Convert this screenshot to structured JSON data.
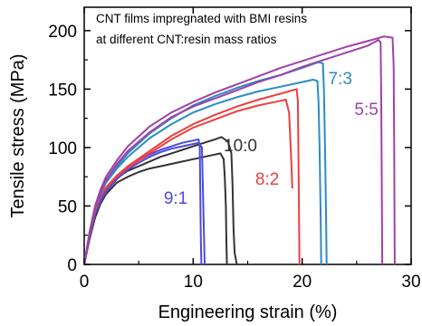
{
  "chart_data": {
    "type": "line",
    "title": "",
    "xlabel": "Engineering strain (%)",
    "ylabel": "Tensile stress (MPa)",
    "xlim": [
      0,
      30
    ],
    "ylim": [
      0,
      220
    ],
    "x_ticks": [
      "0",
      "10",
      "20",
      "30"
    ],
    "y_ticks": [
      "0",
      "50",
      "100",
      "150",
      "200"
    ],
    "grid": false,
    "legend": "none",
    "annotation": [
      "CNT films impregnated with BMI resins",
      "at different CNT:resin mass ratios"
    ],
    "series": [
      {
        "name": "10:0",
        "color": "#333333",
        "curves": [
          [
            [
              0,
              0
            ],
            [
              0.5,
              22
            ],
            [
              1,
              40
            ],
            [
              1.5,
              52
            ],
            [
              2,
              60
            ],
            [
              3,
              70
            ],
            [
              4,
              75
            ],
            [
              5,
              79
            ],
            [
              6,
              82
            ],
            [
              7,
              84
            ],
            [
              8,
              86
            ],
            [
              9,
              88
            ],
            [
              10,
              90
            ],
            [
              11,
              92
            ],
            [
              12,
              94
            ],
            [
              12.5,
              95
            ],
            [
              12.8,
              90
            ],
            [
              12.9,
              75
            ],
            [
              13.0,
              50
            ],
            [
              13.05,
              20
            ],
            [
              13.1,
              0
            ]
          ],
          [
            [
              0,
              0
            ],
            [
              0.5,
              25
            ],
            [
              1,
              45
            ],
            [
              1.5,
              56
            ],
            [
              2,
              64
            ],
            [
              3,
              74
            ],
            [
              4,
              80
            ],
            [
              5,
              84
            ],
            [
              6,
              88
            ],
            [
              7,
              92
            ],
            [
              8,
              95
            ],
            [
              9,
              98
            ],
            [
              10,
              101
            ],
            [
              11,
              104
            ],
            [
              12,
              107
            ],
            [
              12.6,
              109
            ],
            [
              13.2,
              105
            ],
            [
              13.5,
              95
            ],
            [
              13.6,
              70
            ],
            [
              13.7,
              30
            ],
            [
              13.8,
              10
            ],
            [
              14.0,
              0
            ]
          ]
        ]
      },
      {
        "name": "9:1",
        "color": "#4b4bdc",
        "curves": [
          [
            [
              0,
              0
            ],
            [
              0.5,
              25
            ],
            [
              1,
              44
            ],
            [
              1.5,
              55
            ],
            [
              2,
              63
            ],
            [
              3,
              75
            ],
            [
              4,
              83
            ],
            [
              5,
              89
            ],
            [
              6,
              94
            ],
            [
              7,
              98
            ],
            [
              8,
              101
            ],
            [
              9,
              104
            ],
            [
              10,
              106
            ],
            [
              10.5,
              107
            ],
            [
              10.6,
              100
            ],
            [
              10.65,
              60
            ],
            [
              10.7,
              20
            ],
            [
              10.75,
              0
            ]
          ],
          [
            [
              0,
              0
            ],
            [
              0.5,
              24
            ],
            [
              1,
              43
            ],
            [
              1.5,
              54
            ],
            [
              2,
              62
            ],
            [
              3,
              73
            ],
            [
              4,
              81
            ],
            [
              5,
              87
            ],
            [
              6,
              92
            ],
            [
              7,
              96
            ],
            [
              8,
              99
            ],
            [
              9,
              101
            ],
            [
              10,
              103
            ],
            [
              10.5,
              104
            ],
            [
              10.8,
              100
            ],
            [
              10.9,
              60
            ],
            [
              11.0,
              20
            ],
            [
              11.05,
              0
            ]
          ]
        ]
      },
      {
        "name": "8:2",
        "color": "#ef3e3e",
        "curves": [
          [
            [
              0,
              0
            ],
            [
              0.5,
              26
            ],
            [
              1,
              46
            ],
            [
              1.5,
              58
            ],
            [
              2,
              65
            ],
            [
              3,
              75
            ],
            [
              4,
              83
            ],
            [
              6,
              95
            ],
            [
              8,
              107
            ],
            [
              10,
              117
            ],
            [
              12,
              124
            ],
            [
              14,
              131
            ],
            [
              16,
              136
            ],
            [
              18,
              140
            ],
            [
              18.5,
              141
            ],
            [
              18.8,
              130
            ],
            [
              18.9,
              110
            ],
            [
              19.0,
              90
            ],
            [
              19.1,
              65
            ]
          ],
          [
            [
              0,
              0
            ],
            [
              0.5,
              26
            ],
            [
              1,
              46
            ],
            [
              1.5,
              58
            ],
            [
              2,
              66
            ],
            [
              3,
              76
            ],
            [
              4,
              84
            ],
            [
              6,
              97
            ],
            [
              8,
              110
            ],
            [
              10,
              120
            ],
            [
              12,
              128
            ],
            [
              14,
              135
            ],
            [
              16,
              141
            ],
            [
              18,
              146
            ],
            [
              19.5,
              150
            ],
            [
              19.6,
              140
            ],
            [
              19.65,
              100
            ],
            [
              19.7,
              50
            ],
            [
              19.75,
              0
            ]
          ]
        ]
      },
      {
        "name": "7:3",
        "color": "#2b8cc4",
        "curves": [
          [
            [
              0,
              0
            ],
            [
              0.5,
              27
            ],
            [
              1,
              48
            ],
            [
              1.5,
              60
            ],
            [
              2,
              70
            ],
            [
              3,
              82
            ],
            [
              4,
              92
            ],
            [
              6,
              108
            ],
            [
              8,
              120
            ],
            [
              10,
              130
            ],
            [
              12,
              137
            ],
            [
              14,
              143
            ],
            [
              16,
              148
            ],
            [
              18,
              152
            ],
            [
              20,
              156
            ],
            [
              21,
              158
            ],
            [
              21.4,
              157
            ],
            [
              21.5,
              140
            ],
            [
              21.6,
              100
            ],
            [
              21.7,
              40
            ],
            [
              21.75,
              0
            ]
          ],
          [
            [
              0,
              0
            ],
            [
              0.5,
              28
            ],
            [
              1,
              49
            ],
            [
              1.5,
              61
            ],
            [
              2,
              71
            ],
            [
              3,
              84
            ],
            [
              4,
              95
            ],
            [
              6,
              112
            ],
            [
              8,
              125
            ],
            [
              10,
              136
            ],
            [
              12,
              144
            ],
            [
              14,
              151
            ],
            [
              16,
              157
            ],
            [
              18,
              162
            ],
            [
              20,
              168
            ],
            [
              21.5,
              173
            ],
            [
              21.9,
              172
            ],
            [
              22.0,
              150
            ],
            [
              22.1,
              100
            ],
            [
              22.2,
              40
            ],
            [
              22.25,
              0
            ]
          ]
        ]
      },
      {
        "name": "5:5",
        "color": "#a040a8",
        "curves": [
          [
            [
              0,
              0
            ],
            [
              0.5,
              27
            ],
            [
              1,
              48
            ],
            [
              1.5,
              62
            ],
            [
              2,
              72
            ],
            [
              3,
              86
            ],
            [
              4,
              97
            ],
            [
              6,
              113
            ],
            [
              8,
              126
            ],
            [
              10,
              135
            ],
            [
              12,
              142
            ],
            [
              14,
              149
            ],
            [
              16,
              156
            ],
            [
              18,
              162
            ],
            [
              20,
              169
            ],
            [
              22,
              175
            ],
            [
              24,
              181
            ],
            [
              26,
              187
            ],
            [
              27,
              192
            ],
            [
              27.2,
              190
            ],
            [
              27.25,
              150
            ],
            [
              27.3,
              80
            ],
            [
              27.35,
              0
            ]
          ],
          [
            [
              0,
              0
            ],
            [
              0.5,
              28
            ],
            [
              1,
              50
            ],
            [
              1.5,
              64
            ],
            [
              2,
              75
            ],
            [
              3,
              89
            ],
            [
              4,
              101
            ],
            [
              6,
              118
            ],
            [
              8,
              130
            ],
            [
              10,
              139
            ],
            [
              12,
              147
            ],
            [
              14,
              154
            ],
            [
              16,
              161
            ],
            [
              18,
              168
            ],
            [
              20,
              174
            ],
            [
              22,
              180
            ],
            [
              24,
              186
            ],
            [
              26,
              191
            ],
            [
              27.5,
              195
            ],
            [
              28.3,
              194
            ],
            [
              28.4,
              170
            ],
            [
              28.45,
              100
            ],
            [
              28.5,
              0
            ]
          ]
        ]
      }
    ],
    "series_labels": [
      {
        "text": "10:0",
        "x": 12.8,
        "y": 97,
        "color": "#333333"
      },
      {
        "text": "9:1",
        "x": 7.3,
        "y": 52,
        "color": "#4b4bdc"
      },
      {
        "text": "8:2",
        "x": 15.7,
        "y": 68,
        "color": "#ef3e3e"
      },
      {
        "text": "7:3",
        "x": 22.4,
        "y": 154,
        "color": "#2b8cc4"
      },
      {
        "text": "5:5",
        "x": 24.8,
        "y": 128,
        "color": "#a040a8"
      }
    ]
  }
}
